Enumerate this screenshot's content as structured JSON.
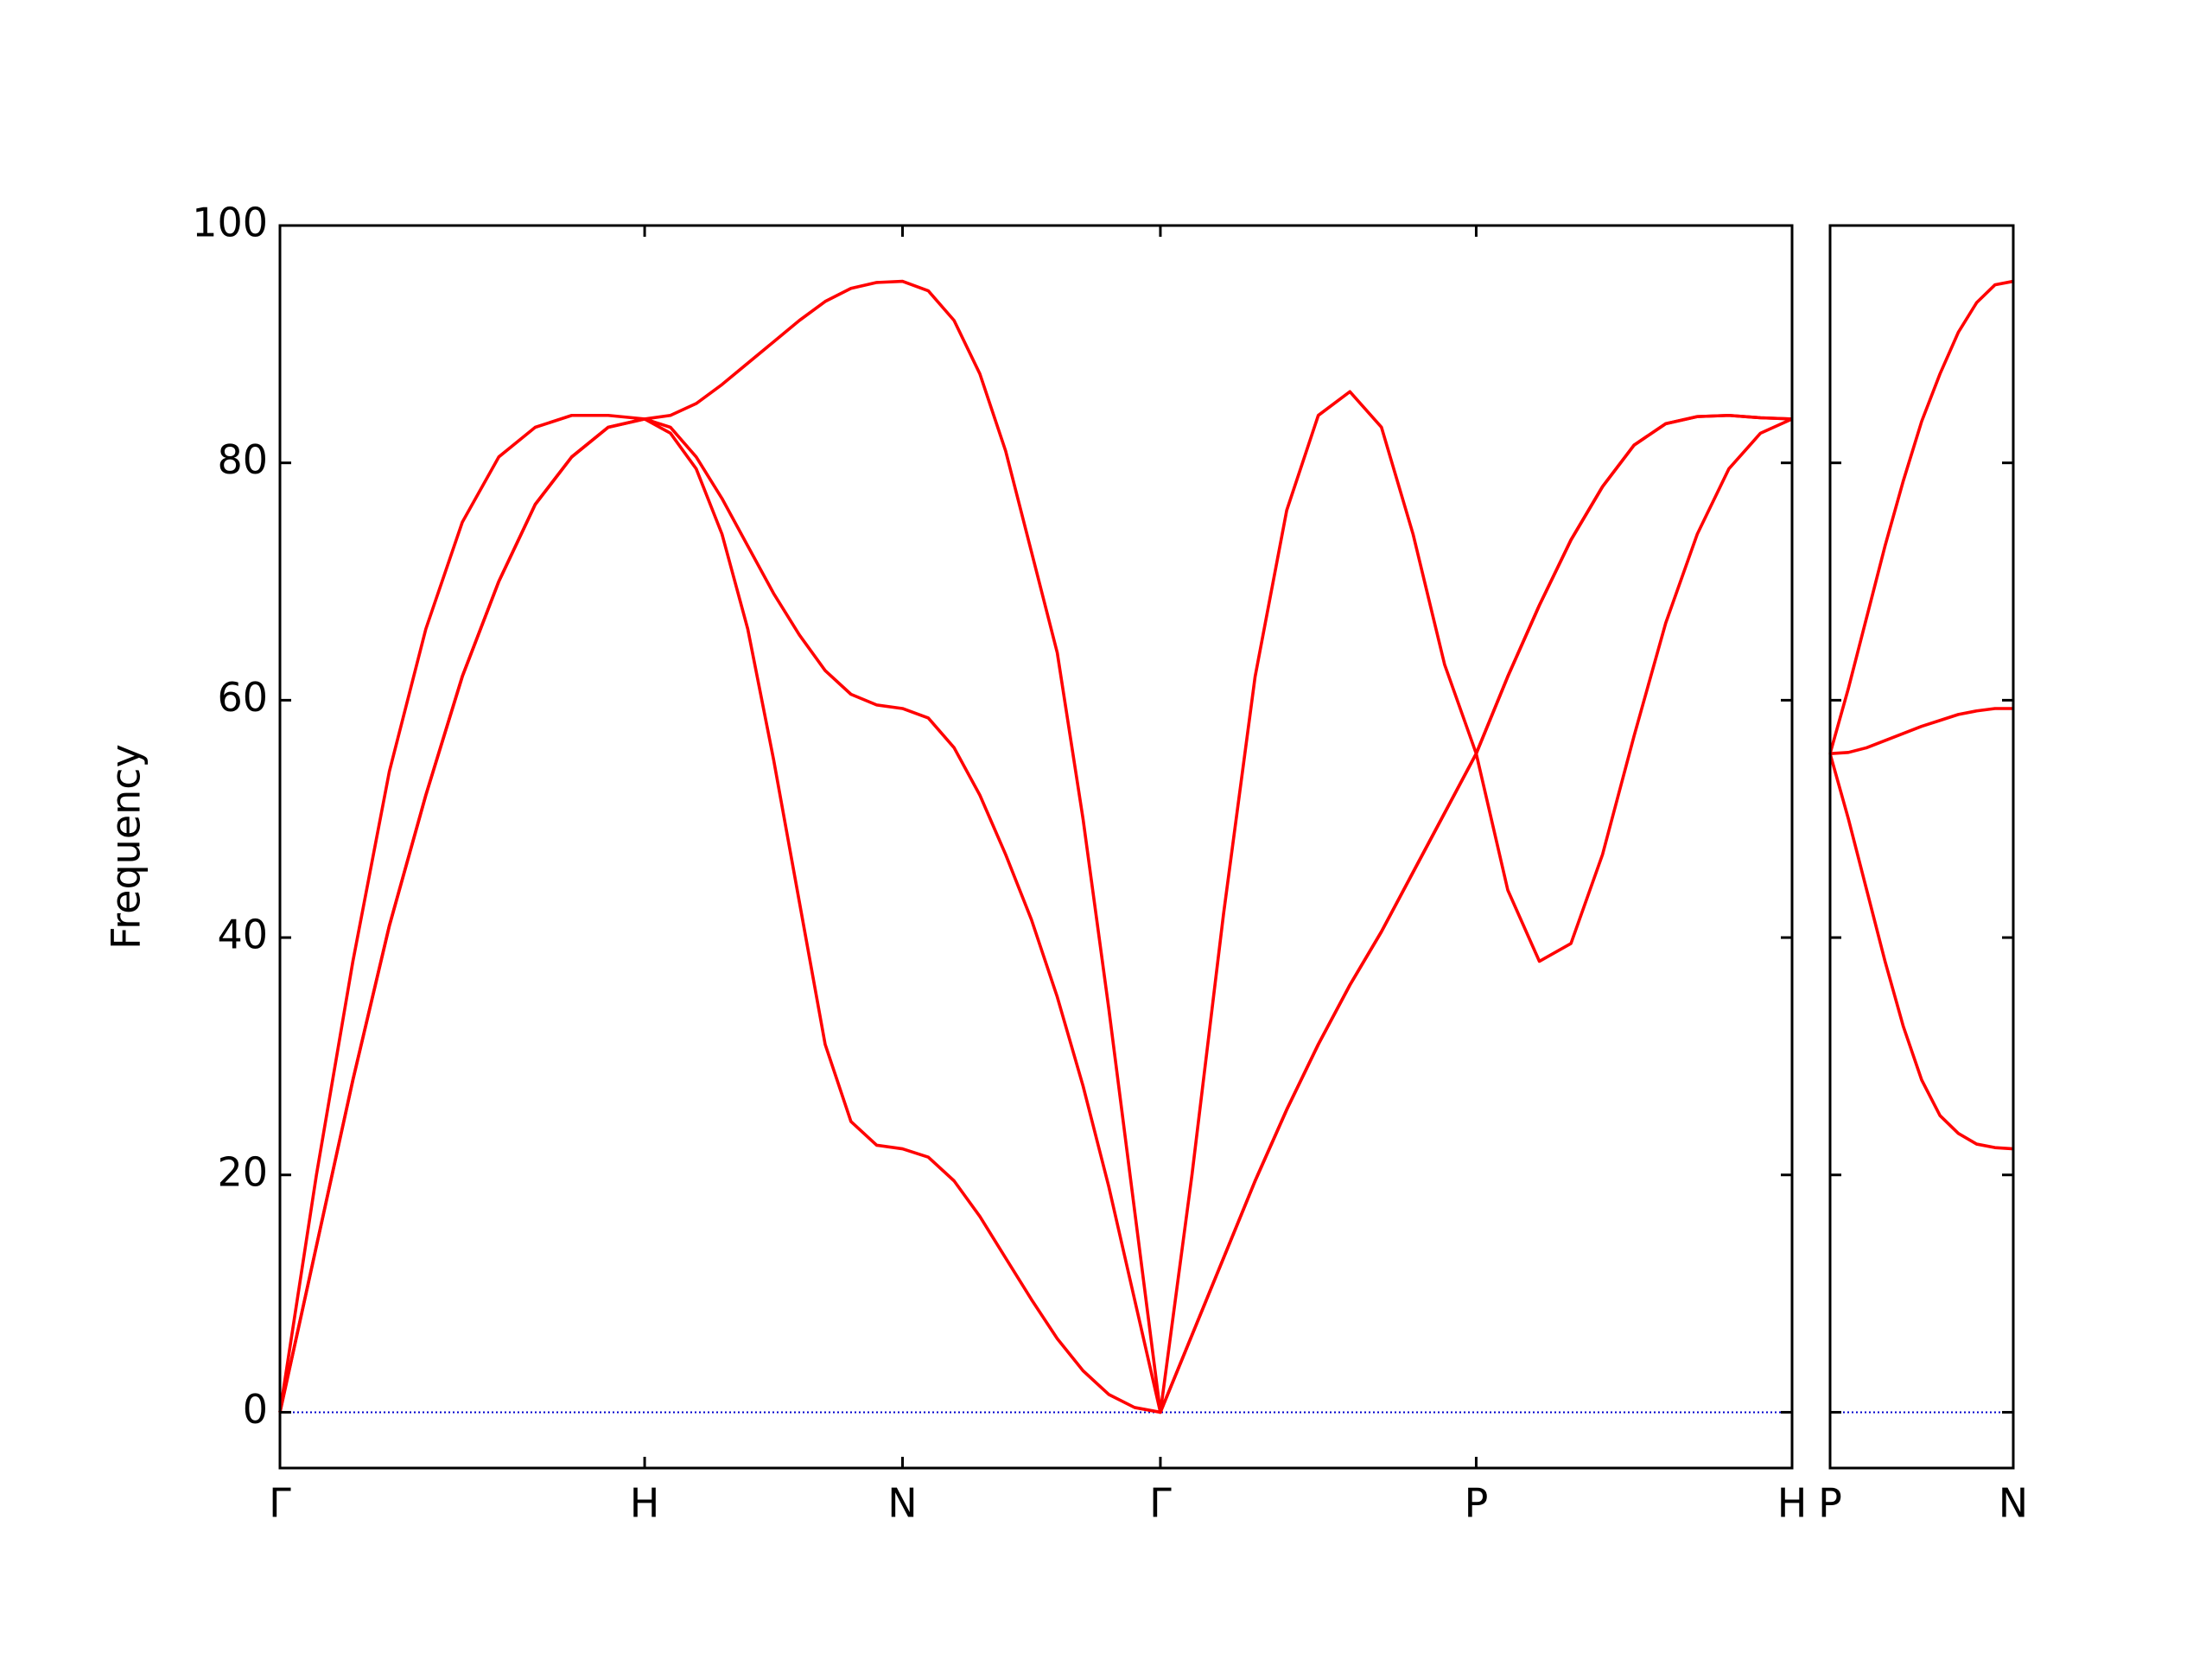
{
  "chart_data": [
    {
      "type": "line",
      "ylabel": "Frequency",
      "x": [
        0,
        0.1,
        0.2,
        0.3,
        0.4,
        0.5,
        0.6,
        0.7,
        0.8,
        0.9,
        1.0,
        1.0707,
        1.1414,
        1.2121,
        1.2828,
        1.3536,
        1.4243,
        1.495,
        1.5657,
        1.6364,
        1.7071,
        1.7778,
        1.8485,
        1.9192,
        1.9899,
        2.0607,
        2.1314,
        2.2021,
        2.2728,
        2.3435,
        2.4142,
        2.5008,
        2.5874,
        2.674,
        2.7606,
        2.8472,
        2.9338,
        3.0204,
        3.107,
        3.1936,
        3.2802,
        3.3668,
        3.4534,
        3.54,
        3.6266,
        3.7132,
        3.7998,
        3.8864,
        3.973,
        4.0597,
        4.1463
      ],
      "series": [
        {
          "color": "#ff0000",
          "values": [
            0,
            14,
            28,
            41,
            52,
            62,
            70,
            76.5,
            80.5,
            83,
            83.7,
            82.5,
            79.5,
            74,
            66,
            55,
            43,
            31,
            24.5,
            22.5,
            22.2,
            21.5,
            19.5,
            16.5,
            13,
            9.5,
            6.2,
            3.5,
            1.5,
            0.4,
            0,
            6.5,
            13,
            19.5,
            25.5,
            31,
            36,
            40.5,
            45.5,
            50.5,
            55.5,
            44,
            38,
            39.5,
            47,
            57,
            66.5,
            74,
            79.5,
            82.5,
            83.7
          ]
        },
        {
          "color": "#ff0000",
          "values": [
            0,
            14,
            28,
            41,
            52,
            62,
            70,
            76.5,
            80.5,
            83,
            83.7,
            83,
            80.5,
            77,
            73,
            69,
            65.5,
            62.5,
            60.5,
            59.6,
            59.3,
            58.5,
            56,
            52,
            47,
            41.5,
            35,
            27.5,
            19,
            9.5,
            0,
            6.5,
            13,
            19.5,
            25.5,
            31,
            36,
            40.5,
            45.5,
            50.5,
            55.5,
            62,
            68,
            73.5,
            78,
            81.5,
            83.3,
            83.9,
            84,
            83.8,
            83.7
          ]
        },
        {
          "color": "#ff0000",
          "values": [
            0,
            20,
            38,
            54,
            66,
            75,
            80.5,
            83,
            84,
            84,
            83.7,
            84,
            85,
            86.6,
            88.4,
            90.2,
            92,
            93.6,
            94.7,
            95.2,
            95.3,
            94.5,
            92,
            87.5,
            81,
            72.5,
            64,
            50,
            34,
            17,
            0,
            20,
            42,
            62,
            76,
            84,
            86,
            83,
            74,
            63,
            55.5,
            62,
            68,
            73.5,
            78,
            81.5,
            83.3,
            83.9,
            84,
            83.8,
            83.7
          ]
        }
      ],
      "xlim": [
        0,
        4.1463
      ],
      "xticks": [
        {
          "value": 0,
          "label": "Γ"
        },
        {
          "value": 1.0,
          "label": "H"
        },
        {
          "value": 1.7071,
          "label": "N"
        },
        {
          "value": 2.4142,
          "label": "Γ"
        },
        {
          "value": 3.2802,
          "label": "P"
        },
        {
          "value": 4.1463,
          "label": "H"
        }
      ],
      "ylim": [
        -4.7,
        100
      ],
      "yticks": [
        0,
        20,
        40,
        60,
        80,
        100
      ],
      "ytick_labels": true,
      "hline": {
        "y": 0,
        "color": "#0000cd"
      }
    },
    {
      "type": "line",
      "x": [
        0,
        0.05,
        0.1,
        0.15,
        0.2,
        0.25,
        0.3,
        0.35,
        0.4,
        0.45,
        0.5
      ],
      "series": [
        {
          "color": "#ff0000",
          "values": [
            55.5,
            50,
            44,
            38,
            32.5,
            28,
            25,
            23.5,
            22.6,
            22.3,
            22.2
          ]
        },
        {
          "color": "#ff0000",
          "values": [
            55.5,
            55.6,
            56,
            56.6,
            57.2,
            57.8,
            58.3,
            58.8,
            59.1,
            59.3,
            59.3
          ]
        },
        {
          "color": "#ff0000",
          "values": [
            55.5,
            61,
            67,
            73,
            78.5,
            83.5,
            87.5,
            91,
            93.5,
            95,
            95.3
          ]
        }
      ],
      "xlim": [
        0,
        0.5
      ],
      "xticks": [
        {
          "value": 0,
          "label": "P"
        },
        {
          "value": 0.5,
          "label": "N"
        }
      ],
      "ylim": [
        -4.7,
        100
      ],
      "yticks": [
        0,
        20,
        40,
        60,
        80,
        100
      ],
      "ytick_labels": false,
      "hline": {
        "y": 0,
        "color": "#0000cd"
      }
    }
  ]
}
